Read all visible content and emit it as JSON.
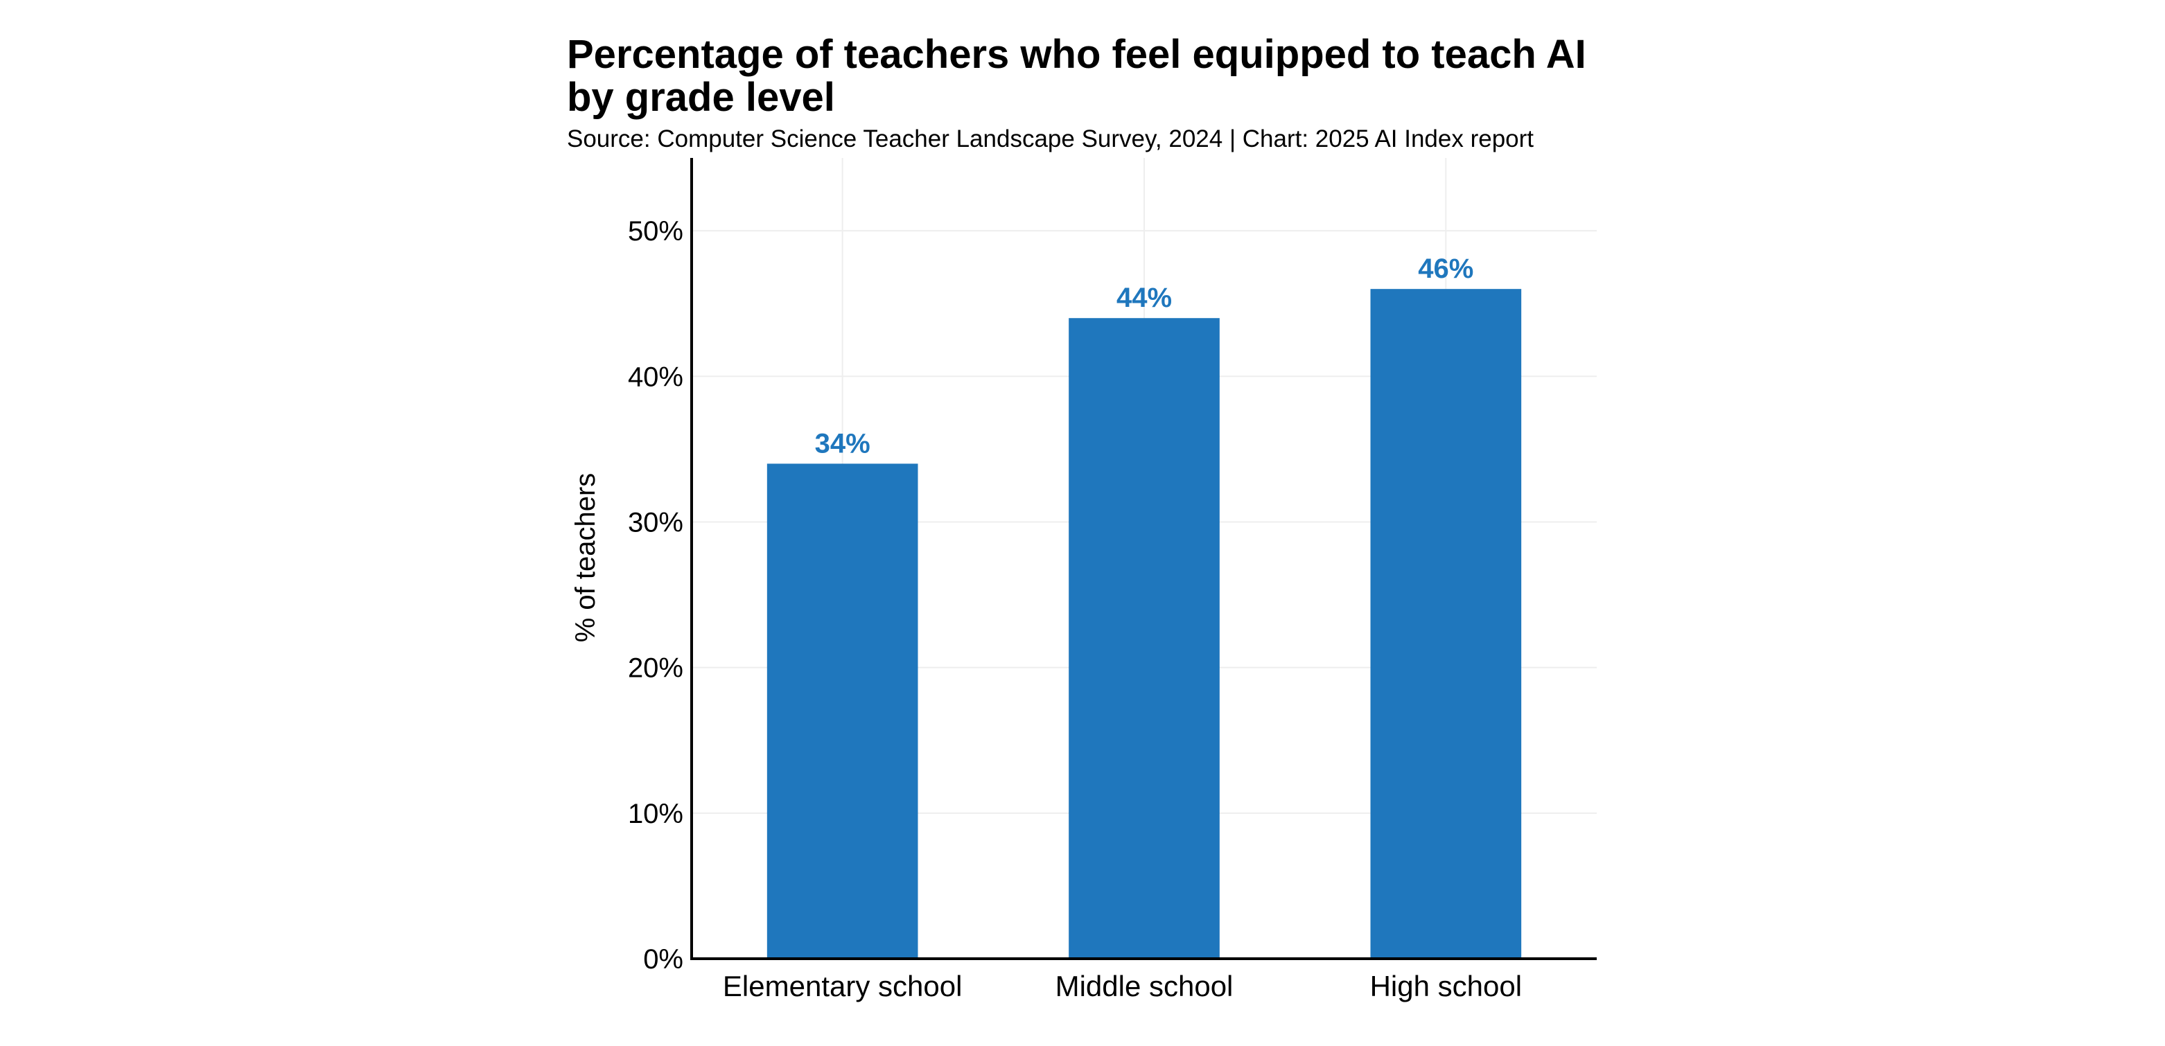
{
  "title_line1": "Percentage of teachers who feel equipped to teach AI",
  "title_line2": "by grade level",
  "subtitle": "Source: Computer Science Teacher Landscape Survey, 2024 | Chart: 2025 AI Index report",
  "colors": {
    "bar": "#1f77bd",
    "label": "#1f77bd",
    "grid": "#eeeeee",
    "axis": "#000000"
  },
  "chart_data": {
    "type": "bar",
    "categories": [
      "Elementary school",
      "Middle school",
      "High school"
    ],
    "values": [
      34,
      44,
      46
    ],
    "data_labels": [
      "34%",
      "44%",
      "46%"
    ],
    "ylabel": "% of teachers",
    "xlabel": "",
    "ylim": [
      0,
      55
    ],
    "yticks": [
      0,
      10,
      20,
      30,
      40,
      50
    ],
    "ytick_labels": [
      "0%",
      "10%",
      "20%",
      "30%",
      "40%",
      "50%"
    ],
    "grid": true,
    "legend": "none"
  }
}
